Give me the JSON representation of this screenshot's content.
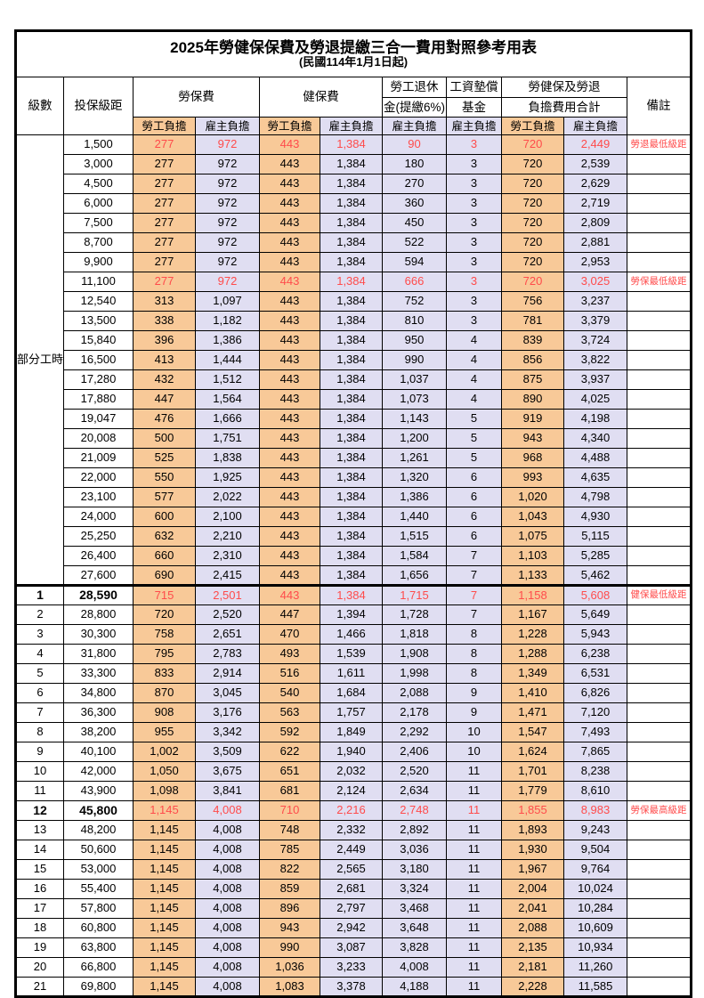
{
  "title": "2025年勞健保保費及勞退提繳三合一費用對照參考用表",
  "subtitle": "(民國114年1月1日起)",
  "colors": {
    "worker_bg": "#F8C998",
    "employer_bg": "#E0DEF2",
    "highlight_red": "#FF4B4B",
    "border": "#000000"
  },
  "header": {
    "level": "級數",
    "salary": "投保級距",
    "labor_ins": "勞保費",
    "health_ins": "健保費",
    "pension_line1": "勞工退休",
    "pension_line2": "金(提繳6%)",
    "wage_fund_line1": "工資墊償",
    "wage_fund_line2": "基金",
    "total_line1": "勞健保及勞退",
    "total_line2": "負擔費用合計",
    "remark": "備註",
    "worker": "勞工負擔",
    "employer": "雇主負擔"
  },
  "part_time_label": "部分工時",
  "part_time_rowspan": 23,
  "section_break_index": 23,
  "rows": [
    {
      "lv": "",
      "s": "1,500",
      "v": [
        "277",
        "972",
        "443",
        "1,384",
        "90",
        "3",
        "720",
        "2,449"
      ],
      "r": "勞退最低級距",
      "red": true,
      "bold": false
    },
    {
      "lv": "",
      "s": "3,000",
      "v": [
        "277",
        "972",
        "443",
        "1,384",
        "180",
        "3",
        "720",
        "2,539"
      ],
      "r": "",
      "red": false,
      "bold": false
    },
    {
      "lv": "",
      "s": "4,500",
      "v": [
        "277",
        "972",
        "443",
        "1,384",
        "270",
        "3",
        "720",
        "2,629"
      ],
      "r": "",
      "red": false,
      "bold": false
    },
    {
      "lv": "",
      "s": "6,000",
      "v": [
        "277",
        "972",
        "443",
        "1,384",
        "360",
        "3",
        "720",
        "2,719"
      ],
      "r": "",
      "red": false,
      "bold": false
    },
    {
      "lv": "",
      "s": "7,500",
      "v": [
        "277",
        "972",
        "443",
        "1,384",
        "450",
        "3",
        "720",
        "2,809"
      ],
      "r": "",
      "red": false,
      "bold": false
    },
    {
      "lv": "",
      "s": "8,700",
      "v": [
        "277",
        "972",
        "443",
        "1,384",
        "522",
        "3",
        "720",
        "2,881"
      ],
      "r": "",
      "red": false,
      "bold": false
    },
    {
      "lv": "",
      "s": "9,900",
      "v": [
        "277",
        "972",
        "443",
        "1,384",
        "594",
        "3",
        "720",
        "2,953"
      ],
      "r": "",
      "red": false,
      "bold": false
    },
    {
      "lv": "",
      "s": "11,100",
      "v": [
        "277",
        "972",
        "443",
        "1,384",
        "666",
        "3",
        "720",
        "3,025"
      ],
      "r": "勞保最低級距",
      "red": true,
      "bold": false
    },
    {
      "lv": "",
      "s": "12,540",
      "v": [
        "313",
        "1,097",
        "443",
        "1,384",
        "752",
        "3",
        "756",
        "3,237"
      ],
      "r": "",
      "red": false,
      "bold": false
    },
    {
      "lv": "",
      "s": "13,500",
      "v": [
        "338",
        "1,182",
        "443",
        "1,384",
        "810",
        "3",
        "781",
        "3,379"
      ],
      "r": "",
      "red": false,
      "bold": false
    },
    {
      "lv": "",
      "s": "15,840",
      "v": [
        "396",
        "1,386",
        "443",
        "1,384",
        "950",
        "4",
        "839",
        "3,724"
      ],
      "r": "",
      "red": false,
      "bold": false
    },
    {
      "lv": "",
      "s": "16,500",
      "v": [
        "413",
        "1,444",
        "443",
        "1,384",
        "990",
        "4",
        "856",
        "3,822"
      ],
      "r": "",
      "red": false,
      "bold": false
    },
    {
      "lv": "",
      "s": "17,280",
      "v": [
        "432",
        "1,512",
        "443",
        "1,384",
        "1,037",
        "4",
        "875",
        "3,937"
      ],
      "r": "",
      "red": false,
      "bold": false
    },
    {
      "lv": "",
      "s": "17,880",
      "v": [
        "447",
        "1,564",
        "443",
        "1,384",
        "1,073",
        "4",
        "890",
        "4,025"
      ],
      "r": "",
      "red": false,
      "bold": false
    },
    {
      "lv": "",
      "s": "19,047",
      "v": [
        "476",
        "1,666",
        "443",
        "1,384",
        "1,143",
        "5",
        "919",
        "4,198"
      ],
      "r": "",
      "red": false,
      "bold": false
    },
    {
      "lv": "",
      "s": "20,008",
      "v": [
        "500",
        "1,751",
        "443",
        "1,384",
        "1,200",
        "5",
        "943",
        "4,340"
      ],
      "r": "",
      "red": false,
      "bold": false
    },
    {
      "lv": "",
      "s": "21,009",
      "v": [
        "525",
        "1,838",
        "443",
        "1,384",
        "1,261",
        "5",
        "968",
        "4,488"
      ],
      "r": "",
      "red": false,
      "bold": false
    },
    {
      "lv": "",
      "s": "22,000",
      "v": [
        "550",
        "1,925",
        "443",
        "1,384",
        "1,320",
        "6",
        "993",
        "4,635"
      ],
      "r": "",
      "red": false,
      "bold": false
    },
    {
      "lv": "",
      "s": "23,100",
      "v": [
        "577",
        "2,022",
        "443",
        "1,384",
        "1,386",
        "6",
        "1,020",
        "4,798"
      ],
      "r": "",
      "red": false,
      "bold": false
    },
    {
      "lv": "",
      "s": "24,000",
      "v": [
        "600",
        "2,100",
        "443",
        "1,384",
        "1,440",
        "6",
        "1,043",
        "4,930"
      ],
      "r": "",
      "red": false,
      "bold": false
    },
    {
      "lv": "",
      "s": "25,250",
      "v": [
        "632",
        "2,210",
        "443",
        "1,384",
        "1,515",
        "6",
        "1,075",
        "5,115"
      ],
      "r": "",
      "red": false,
      "bold": false
    },
    {
      "lv": "",
      "s": "26,400",
      "v": [
        "660",
        "2,310",
        "443",
        "1,384",
        "1,584",
        "7",
        "1,103",
        "5,285"
      ],
      "r": "",
      "red": false,
      "bold": false
    },
    {
      "lv": "",
      "s": "27,600",
      "v": [
        "690",
        "2,415",
        "443",
        "1,384",
        "1,656",
        "7",
        "1,133",
        "5,462"
      ],
      "r": "",
      "red": false,
      "bold": false
    },
    {
      "lv": "1",
      "s": "28,590",
      "v": [
        "715",
        "2,501",
        "443",
        "1,384",
        "1,715",
        "7",
        "1,158",
        "5,608"
      ],
      "r": "健保最低級距",
      "red": true,
      "bold": true
    },
    {
      "lv": "2",
      "s": "28,800",
      "v": [
        "720",
        "2,520",
        "447",
        "1,394",
        "1,728",
        "7",
        "1,167",
        "5,649"
      ],
      "r": "",
      "red": false,
      "bold": false
    },
    {
      "lv": "3",
      "s": "30,300",
      "v": [
        "758",
        "2,651",
        "470",
        "1,466",
        "1,818",
        "8",
        "1,228",
        "5,943"
      ],
      "r": "",
      "red": false,
      "bold": false
    },
    {
      "lv": "4",
      "s": "31,800",
      "v": [
        "795",
        "2,783",
        "493",
        "1,539",
        "1,908",
        "8",
        "1,288",
        "6,238"
      ],
      "r": "",
      "red": false,
      "bold": false
    },
    {
      "lv": "5",
      "s": "33,300",
      "v": [
        "833",
        "2,914",
        "516",
        "1,611",
        "1,998",
        "8",
        "1,349",
        "6,531"
      ],
      "r": "",
      "red": false,
      "bold": false
    },
    {
      "lv": "6",
      "s": "34,800",
      "v": [
        "870",
        "3,045",
        "540",
        "1,684",
        "2,088",
        "9",
        "1,410",
        "6,826"
      ],
      "r": "",
      "red": false,
      "bold": false
    },
    {
      "lv": "7",
      "s": "36,300",
      "v": [
        "908",
        "3,176",
        "563",
        "1,757",
        "2,178",
        "9",
        "1,471",
        "7,120"
      ],
      "r": "",
      "red": false,
      "bold": false
    },
    {
      "lv": "8",
      "s": "38,200",
      "v": [
        "955",
        "3,342",
        "592",
        "1,849",
        "2,292",
        "10",
        "1,547",
        "7,493"
      ],
      "r": "",
      "red": false,
      "bold": false
    },
    {
      "lv": "9",
      "s": "40,100",
      "v": [
        "1,002",
        "3,509",
        "622",
        "1,940",
        "2,406",
        "10",
        "1,624",
        "7,865"
      ],
      "r": "",
      "red": false,
      "bold": false
    },
    {
      "lv": "10",
      "s": "42,000",
      "v": [
        "1,050",
        "3,675",
        "651",
        "2,032",
        "2,520",
        "11",
        "1,701",
        "8,238"
      ],
      "r": "",
      "red": false,
      "bold": false
    },
    {
      "lv": "11",
      "s": "43,900",
      "v": [
        "1,098",
        "3,841",
        "681",
        "2,124",
        "2,634",
        "11",
        "1,779",
        "8,610"
      ],
      "r": "",
      "red": false,
      "bold": false
    },
    {
      "lv": "12",
      "s": "45,800",
      "v": [
        "1,145",
        "4,008",
        "710",
        "2,216",
        "2,748",
        "11",
        "1,855",
        "8,983"
      ],
      "r": "勞保最高級距",
      "red": true,
      "bold": true
    },
    {
      "lv": "13",
      "s": "48,200",
      "v": [
        "1,145",
        "4,008",
        "748",
        "2,332",
        "2,892",
        "11",
        "1,893",
        "9,243"
      ],
      "r": "",
      "red": false,
      "bold": false
    },
    {
      "lv": "14",
      "s": "50,600",
      "v": [
        "1,145",
        "4,008",
        "785",
        "2,449",
        "3,036",
        "11",
        "1,930",
        "9,504"
      ],
      "r": "",
      "red": false,
      "bold": false
    },
    {
      "lv": "15",
      "s": "53,000",
      "v": [
        "1,145",
        "4,008",
        "822",
        "2,565",
        "3,180",
        "11",
        "1,967",
        "9,764"
      ],
      "r": "",
      "red": false,
      "bold": false
    },
    {
      "lv": "16",
      "s": "55,400",
      "v": [
        "1,145",
        "4,008",
        "859",
        "2,681",
        "3,324",
        "11",
        "2,004",
        "10,024"
      ],
      "r": "",
      "red": false,
      "bold": false
    },
    {
      "lv": "17",
      "s": "57,800",
      "v": [
        "1,145",
        "4,008",
        "896",
        "2,797",
        "3,468",
        "11",
        "2,041",
        "10,284"
      ],
      "r": "",
      "red": false,
      "bold": false
    },
    {
      "lv": "18",
      "s": "60,800",
      "v": [
        "1,145",
        "4,008",
        "943",
        "2,942",
        "3,648",
        "11",
        "2,088",
        "10,609"
      ],
      "r": "",
      "red": false,
      "bold": false
    },
    {
      "lv": "19",
      "s": "63,800",
      "v": [
        "1,145",
        "4,008",
        "990",
        "3,087",
        "3,828",
        "11",
        "2,135",
        "10,934"
      ],
      "r": "",
      "red": false,
      "bold": false
    },
    {
      "lv": "20",
      "s": "66,800",
      "v": [
        "1,145",
        "4,008",
        "1,036",
        "3,233",
        "4,008",
        "11",
        "2,181",
        "11,260"
      ],
      "r": "",
      "red": false,
      "bold": false
    },
    {
      "lv": "21",
      "s": "69,800",
      "v": [
        "1,145",
        "4,008",
        "1,083",
        "3,378",
        "4,188",
        "11",
        "2,228",
        "11,585"
      ],
      "r": "",
      "red": false,
      "bold": false
    }
  ]
}
